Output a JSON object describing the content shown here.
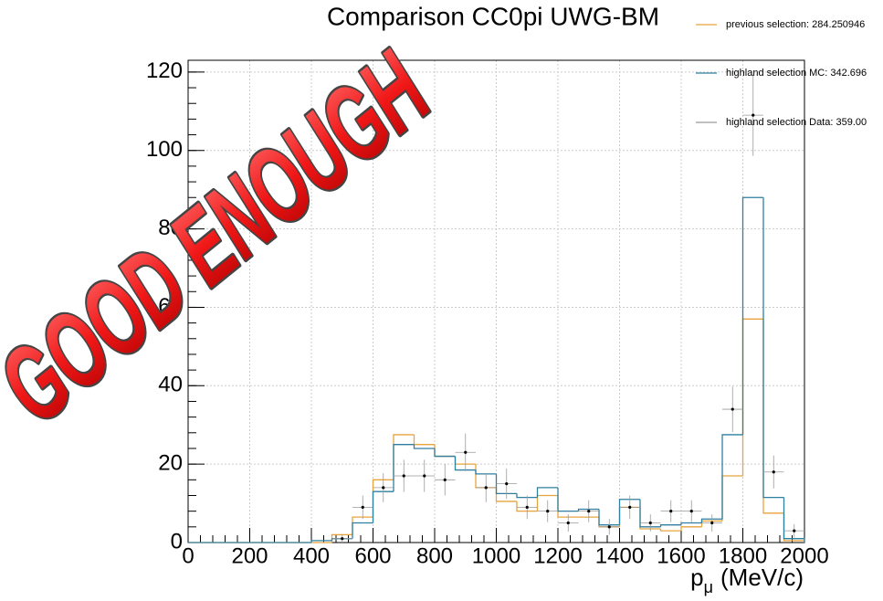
{
  "chart_data": {
    "type": "histogram",
    "title": "Comparison CC0pi UWG-BM",
    "x_label": {
      "symbol": "p",
      "subscript": "μ",
      "unit": "(MeV/c)"
    },
    "annotation": "GOOD ENOUGH",
    "bins": [
      0,
      66.67,
      133.33,
      200,
      266.67,
      333.33,
      400,
      466.67,
      533.33,
      600,
      666.67,
      733.33,
      800,
      866.67,
      933.33,
      1000,
      1066.67,
      1133.33,
      1200,
      1266.67,
      1333.33,
      1400,
      1466.67,
      1533.33,
      1600,
      1666.67,
      1733.33,
      1800,
      1866.67,
      1933.33,
      2000
    ],
    "series": [
      {
        "name": "previous selection: 284.250946",
        "color": "#e8a33d",
        "style": "step",
        "values": [
          0,
          0,
          0,
          0,
          0,
          0,
          0,
          2,
          6.5,
          16,
          27.5,
          25,
          22,
          20,
          14,
          10.5,
          8,
          12,
          6.5,
          6.5,
          4,
          9,
          3.5,
          3,
          4,
          5.5,
          17,
          57,
          7.5,
          0.5
        ]
      },
      {
        "name": "highland selection MC: 342.696",
        "color": "#2f7fa0",
        "style": "step",
        "values": [
          0,
          0,
          0,
          0,
          0,
          0,
          0.5,
          1,
          5,
          13,
          25,
          24,
          22,
          18.5,
          17.5,
          12.5,
          11.5,
          14,
          8,
          8.5,
          4.5,
          11,
          4,
          4.5,
          5,
          6,
          27.5,
          88,
          11.5,
          1
        ]
      },
      {
        "name": "highland selection Data: 359.00",
        "color": "#999999",
        "style": "points",
        "values": [
          null,
          null,
          null,
          null,
          null,
          null,
          null,
          1,
          9,
          14,
          17,
          17,
          16,
          23,
          14,
          15,
          9,
          8,
          5,
          8,
          4,
          9,
          5,
          8,
          8,
          5,
          34,
          109,
          18,
          3
        ],
        "errors": [
          null,
          null,
          null,
          null,
          null,
          null,
          null,
          1,
          3,
          3.7,
          4.1,
          4.1,
          4,
          4.8,
          3.7,
          3.9,
          3,
          2.8,
          2.2,
          2.8,
          2,
          3,
          2.2,
          2.8,
          2.8,
          2.2,
          5.8,
          10.4,
          4.2,
          1.7
        ]
      }
    ],
    "xlim": [
      0,
      2000
    ],
    "xticks": [
      0,
      200,
      400,
      600,
      800,
      1000,
      1200,
      1400,
      1600,
      1800,
      2000
    ],
    "ylim": [
      0,
      123
    ],
    "yticks": [
      0,
      20,
      40,
      60,
      80,
      100,
      120
    ],
    "grid": true
  }
}
